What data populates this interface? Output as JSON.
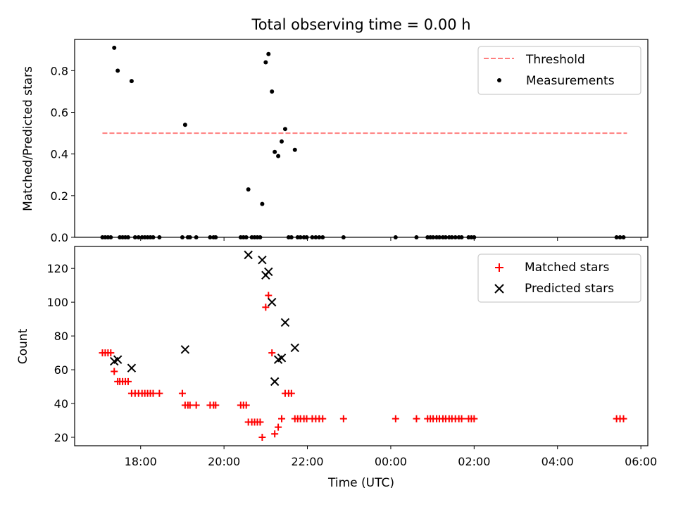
{
  "figure": {
    "title": "Total observing time = 0.00 h"
  },
  "chart_data": [
    {
      "type": "scatter",
      "panel": "top",
      "title": "Total observing time = 0.00 h",
      "xlabel": "",
      "ylabel": "Matched/Predicted stars",
      "xlim": [
        "16:25",
        "06:10"
      ],
      "ylim": [
        0,
        0.95
      ],
      "yticks": [
        "0.0",
        "0.2",
        "0.4",
        "0.6",
        "0.8"
      ],
      "legend_position": "upper-right",
      "threshold": {
        "name": "Threshold",
        "value": 0.5,
        "x_start": "17:05",
        "x_end": "05:40",
        "color": "#ff7f7f",
        "style": "dashed"
      },
      "series": [
        {
          "name": "Measurements",
          "marker": "dot",
          "color": "#000000",
          "points": [
            {
              "x": "17:05",
              "y": 0
            },
            {
              "x": "17:09",
              "y": 0
            },
            {
              "x": "17:13",
              "y": 0
            },
            {
              "x": "17:17",
              "y": 0
            },
            {
              "x": "17:22",
              "y": 0.91
            },
            {
              "x": "17:27",
              "y": 0.8
            },
            {
              "x": "17:30",
              "y": 0
            },
            {
              "x": "17:34",
              "y": 0
            },
            {
              "x": "17:38",
              "y": 0
            },
            {
              "x": "17:42",
              "y": 0
            },
            {
              "x": "17:47",
              "y": 0.75
            },
            {
              "x": "17:52",
              "y": 0
            },
            {
              "x": "17:57",
              "y": 0
            },
            {
              "x": "18:02",
              "y": 0
            },
            {
              "x": "18:06",
              "y": 0
            },
            {
              "x": "18:10",
              "y": 0
            },
            {
              "x": "18:14",
              "y": 0
            },
            {
              "x": "18:18",
              "y": 0
            },
            {
              "x": "18:27",
              "y": 0
            },
            {
              "x": "19:00",
              "y": 0
            },
            {
              "x": "19:04",
              "y": 0.54
            },
            {
              "x": "19:08",
              "y": 0
            },
            {
              "x": "19:11",
              "y": 0
            },
            {
              "x": "19:20",
              "y": 0
            },
            {
              "x": "19:40",
              "y": 0
            },
            {
              "x": "19:45",
              "y": 0
            },
            {
              "x": "19:48",
              "y": 0
            },
            {
              "x": "20:24",
              "y": 0
            },
            {
              "x": "20:28",
              "y": 0
            },
            {
              "x": "20:32",
              "y": 0
            },
            {
              "x": "20:35",
              "y": 0.23
            },
            {
              "x": "20:40",
              "y": 0
            },
            {
              "x": "20:44",
              "y": 0
            },
            {
              "x": "20:48",
              "y": 0
            },
            {
              "x": "20:52",
              "y": 0
            },
            {
              "x": "20:55",
              "y": 0.16
            },
            {
              "x": "21:00",
              "y": 0.84
            },
            {
              "x": "21:04",
              "y": 0.88
            },
            {
              "x": "21:09",
              "y": 0.7
            },
            {
              "x": "21:13",
              "y": 0.41
            },
            {
              "x": "21:18",
              "y": 0.39
            },
            {
              "x": "21:23",
              "y": 0.46
            },
            {
              "x": "21:28",
              "y": 0.52
            },
            {
              "x": "21:33",
              "y": 0
            },
            {
              "x": "21:37",
              "y": 0
            },
            {
              "x": "21:42",
              "y": 0.42
            },
            {
              "x": "21:46",
              "y": 0
            },
            {
              "x": "21:50",
              "y": 0
            },
            {
              "x": "21:55",
              "y": 0
            },
            {
              "x": "21:59",
              "y": 0
            },
            {
              "x": "22:07",
              "y": 0
            },
            {
              "x": "22:12",
              "y": 0
            },
            {
              "x": "22:17",
              "y": 0
            },
            {
              "x": "22:22",
              "y": 0
            },
            {
              "x": "22:52",
              "y": 0
            },
            {
              "x": "00:07",
              "y": 0
            },
            {
              "x": "00:37",
              "y": 0
            },
            {
              "x": "00:53",
              "y": 0
            },
            {
              "x": "00:57",
              "y": 0
            },
            {
              "x": "01:01",
              "y": 0
            },
            {
              "x": "01:06",
              "y": 0
            },
            {
              "x": "01:10",
              "y": 0
            },
            {
              "x": "01:15",
              "y": 0
            },
            {
              "x": "01:19",
              "y": 0
            },
            {
              "x": "01:24",
              "y": 0
            },
            {
              "x": "01:28",
              "y": 0
            },
            {
              "x": "01:33",
              "y": 0
            },
            {
              "x": "01:38",
              "y": 0
            },
            {
              "x": "01:42",
              "y": 0
            },
            {
              "x": "01:52",
              "y": 0
            },
            {
              "x": "01:56",
              "y": 0
            },
            {
              "x": "02:00",
              "y": 0
            },
            {
              "x": "05:25",
              "y": 0
            },
            {
              "x": "05:30",
              "y": 0
            },
            {
              "x": "05:35",
              "y": 0
            }
          ]
        }
      ]
    },
    {
      "type": "scatter",
      "panel": "bottom",
      "xlabel": "Time (UTC)",
      "ylabel": "Count",
      "xlim": [
        "16:25",
        "06:10"
      ],
      "ylim": [
        15,
        133
      ],
      "yticks": [
        20,
        40,
        60,
        80,
        100,
        120
      ],
      "xticks": [
        "18:00",
        "20:00",
        "22:00",
        "00:00",
        "02:00",
        "04:00",
        "06:00"
      ],
      "legend_position": "upper-right",
      "series": [
        {
          "name": "Matched stars",
          "marker": "plus",
          "color": "#ff0000",
          "points": [
            {
              "x": "17:05",
              "y": 70
            },
            {
              "x": "17:09",
              "y": 70
            },
            {
              "x": "17:13",
              "y": 70
            },
            {
              "x": "17:17",
              "y": 70
            },
            {
              "x": "17:22",
              "y": 59
            },
            {
              "x": "17:27",
              "y": 53
            },
            {
              "x": "17:30",
              "y": 53
            },
            {
              "x": "17:34",
              "y": 53
            },
            {
              "x": "17:38",
              "y": 53
            },
            {
              "x": "17:42",
              "y": 53
            },
            {
              "x": "17:47",
              "y": 46
            },
            {
              "x": "17:52",
              "y": 46
            },
            {
              "x": "17:57",
              "y": 46
            },
            {
              "x": "18:02",
              "y": 46
            },
            {
              "x": "18:06",
              "y": 46
            },
            {
              "x": "18:10",
              "y": 46
            },
            {
              "x": "18:14",
              "y": 46
            },
            {
              "x": "18:18",
              "y": 46
            },
            {
              "x": "18:27",
              "y": 46
            },
            {
              "x": "19:00",
              "y": 46
            },
            {
              "x": "19:04",
              "y": 39
            },
            {
              "x": "19:08",
              "y": 39
            },
            {
              "x": "19:11",
              "y": 39
            },
            {
              "x": "19:20",
              "y": 39
            },
            {
              "x": "19:40",
              "y": 39
            },
            {
              "x": "19:45",
              "y": 39
            },
            {
              "x": "19:48",
              "y": 39
            },
            {
              "x": "20:24",
              "y": 39
            },
            {
              "x": "20:28",
              "y": 39
            },
            {
              "x": "20:32",
              "y": 39
            },
            {
              "x": "20:35",
              "y": 29
            },
            {
              "x": "20:40",
              "y": 29
            },
            {
              "x": "20:44",
              "y": 29
            },
            {
              "x": "20:48",
              "y": 29
            },
            {
              "x": "20:52",
              "y": 29
            },
            {
              "x": "20:55",
              "y": 20
            },
            {
              "x": "21:00",
              "y": 97
            },
            {
              "x": "21:04",
              "y": 104
            },
            {
              "x": "21:09",
              "y": 70
            },
            {
              "x": "21:13",
              "y": 22
            },
            {
              "x": "21:18",
              "y": 26
            },
            {
              "x": "21:23",
              "y": 31
            },
            {
              "x": "21:28",
              "y": 46
            },
            {
              "x": "21:33",
              "y": 46
            },
            {
              "x": "21:37",
              "y": 46
            },
            {
              "x": "21:42",
              "y": 31
            },
            {
              "x": "21:46",
              "y": 31
            },
            {
              "x": "21:50",
              "y": 31
            },
            {
              "x": "21:55",
              "y": 31
            },
            {
              "x": "21:59",
              "y": 31
            },
            {
              "x": "22:07",
              "y": 31
            },
            {
              "x": "22:12",
              "y": 31
            },
            {
              "x": "22:17",
              "y": 31
            },
            {
              "x": "22:22",
              "y": 31
            },
            {
              "x": "22:52",
              "y": 31
            },
            {
              "x": "00:07",
              "y": 31
            },
            {
              "x": "00:37",
              "y": 31
            },
            {
              "x": "00:53",
              "y": 31
            },
            {
              "x": "00:57",
              "y": 31
            },
            {
              "x": "01:01",
              "y": 31
            },
            {
              "x": "01:06",
              "y": 31
            },
            {
              "x": "01:10",
              "y": 31
            },
            {
              "x": "01:15",
              "y": 31
            },
            {
              "x": "01:19",
              "y": 31
            },
            {
              "x": "01:24",
              "y": 31
            },
            {
              "x": "01:28",
              "y": 31
            },
            {
              "x": "01:33",
              "y": 31
            },
            {
              "x": "01:38",
              "y": 31
            },
            {
              "x": "01:42",
              "y": 31
            },
            {
              "x": "01:52",
              "y": 31
            },
            {
              "x": "01:56",
              "y": 31
            },
            {
              "x": "02:00",
              "y": 31
            },
            {
              "x": "05:25",
              "y": 31
            },
            {
              "x": "05:30",
              "y": 31
            },
            {
              "x": "05:35",
              "y": 31
            }
          ]
        },
        {
          "name": "Predicted stars",
          "marker": "x",
          "color": "#000000",
          "points": [
            {
              "x": "17:22",
              "y": 65
            },
            {
              "x": "17:27",
              "y": 66
            },
            {
              "x": "17:47",
              "y": 61
            },
            {
              "x": "19:04",
              "y": 72
            },
            {
              "x": "20:35",
              "y": 128
            },
            {
              "x": "20:55",
              "y": 125
            },
            {
              "x": "21:00",
              "y": 116
            },
            {
              "x": "21:04",
              "y": 118
            },
            {
              "x": "21:09",
              "y": 100
            },
            {
              "x": "21:13",
              "y": 53
            },
            {
              "x": "21:18",
              "y": 66
            },
            {
              "x": "21:23",
              "y": 67
            },
            {
              "x": "21:28",
              "y": 88
            },
            {
              "x": "21:42",
              "y": 73
            }
          ]
        }
      ]
    }
  ]
}
